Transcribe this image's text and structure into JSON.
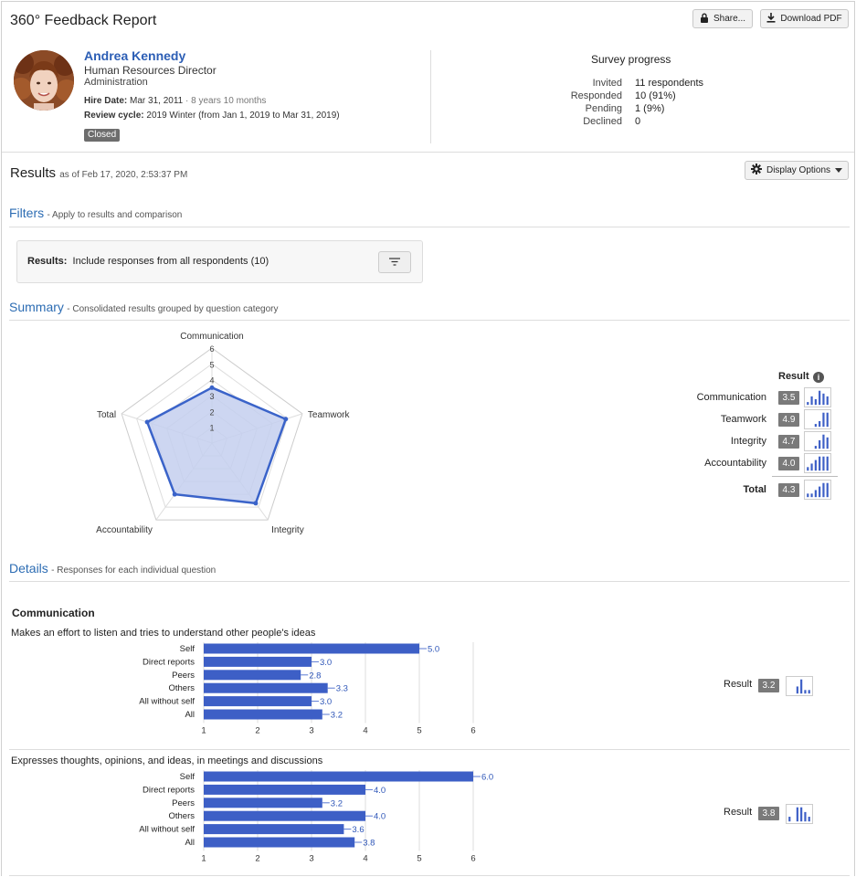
{
  "header": {
    "title": "360° Feedback Report",
    "share_label": "Share...",
    "download_label": "Download PDF"
  },
  "profile": {
    "name": "Andrea Kennedy",
    "job_title": "Human Resources Director",
    "department": "Administration",
    "hire_date_label": "Hire Date:",
    "hire_date": "Mar 31, 2011",
    "tenure": "· 8 years 10 months",
    "review_cycle_label": "Review cycle:",
    "review_cycle": "2019 Winter (from Jan 1, 2019 to Mar 31, 2019)",
    "status": "Closed"
  },
  "progress": {
    "title": "Survey progress",
    "rows": [
      {
        "label": "Invited",
        "value": "11 respondents"
      },
      {
        "label": "Responded",
        "value": "10 (91%)"
      },
      {
        "label": "Pending",
        "value": "1 (9%)"
      },
      {
        "label": "Declined",
        "value": "0"
      }
    ]
  },
  "results": {
    "title": "Results",
    "as_of": "as of Feb 17, 2020, 2:53:37 PM",
    "display_options_label": "Display Options"
  },
  "filters": {
    "title": "Filters",
    "subtitle": "- Apply to results and comparison",
    "results_label": "Results:",
    "results_text": "Include responses from all respondents (10)"
  },
  "summary": {
    "title": "Summary",
    "subtitle": "- Consolidated results grouped by question category",
    "result_header": "Result",
    "rows": [
      {
        "label": "Communication",
        "score": "3.5",
        "dist": [
          1,
          3,
          2,
          5,
          4,
          3
        ]
      },
      {
        "label": "Teamwork",
        "score": "4.9",
        "dist": [
          0,
          0,
          1,
          2,
          5,
          5
        ]
      },
      {
        "label": "Integrity",
        "score": "4.7",
        "dist": [
          0,
          0,
          1,
          3,
          5,
          4
        ]
      },
      {
        "label": "Accountability",
        "score": "4.0",
        "dist": [
          1,
          2,
          3,
          4,
          4,
          4
        ]
      }
    ],
    "total": {
      "label": "Total",
      "score": "4.3",
      "dist": [
        1,
        1,
        2,
        3,
        4,
        4
      ]
    }
  },
  "details": {
    "title": "Details",
    "subtitle": "- Responses for each individual question",
    "category": "Communication",
    "result_label": "Result"
  },
  "chart_data": [
    {
      "type": "radar",
      "axes": [
        "Communication",
        "Teamwork",
        "Integrity",
        "Accountability",
        "Total"
      ],
      "values": [
        3.5,
        4.9,
        4.7,
        4.0,
        4.3
      ],
      "range": [
        0,
        6
      ],
      "ticks": [
        "1",
        "2",
        "3",
        "4",
        "5",
        "6"
      ]
    },
    {
      "type": "bar",
      "orientation": "horizontal",
      "title": "Makes an effort to listen and tries to understand other people's ideas",
      "categories": [
        "Self",
        "Direct reports",
        "Peers",
        "Others",
        "All without self",
        "All"
      ],
      "values": [
        5.0,
        3.0,
        2.8,
        3.3,
        3.0,
        3.2
      ],
      "labels": [
        "5.0",
        "3.0",
        "2.8",
        "3.3",
        "3.0",
        "3.2"
      ],
      "xlim": [
        1,
        6
      ],
      "ticks": [
        "1",
        "2",
        "3",
        "4",
        "5",
        "6"
      ],
      "result": "3.2",
      "dist": [
        0,
        0,
        2,
        4,
        1,
        1
      ]
    },
    {
      "type": "bar",
      "orientation": "horizontal",
      "title": "Expresses thoughts, opinions, and ideas, in meetings and discussions",
      "categories": [
        "Self",
        "Direct reports",
        "Peers",
        "Others",
        "All without self",
        "All"
      ],
      "values": [
        6.0,
        4.0,
        3.2,
        4.0,
        3.6,
        3.8
      ],
      "labels": [
        "6.0",
        "4.0",
        "3.2",
        "4.0",
        "3.6",
        "3.8"
      ],
      "xlim": [
        1,
        6
      ],
      "ticks": [
        "1",
        "2",
        "3",
        "4",
        "5",
        "6"
      ],
      "result": "3.8",
      "dist": [
        1,
        0,
        3,
        3,
        2,
        1
      ]
    }
  ],
  "colors": {
    "accent": "#2c6cb3",
    "bar": "#3d5fc6",
    "radar_fill": "#c4cfef",
    "radar_stroke": "#3a63c9",
    "badge": "#7a7a7a"
  }
}
